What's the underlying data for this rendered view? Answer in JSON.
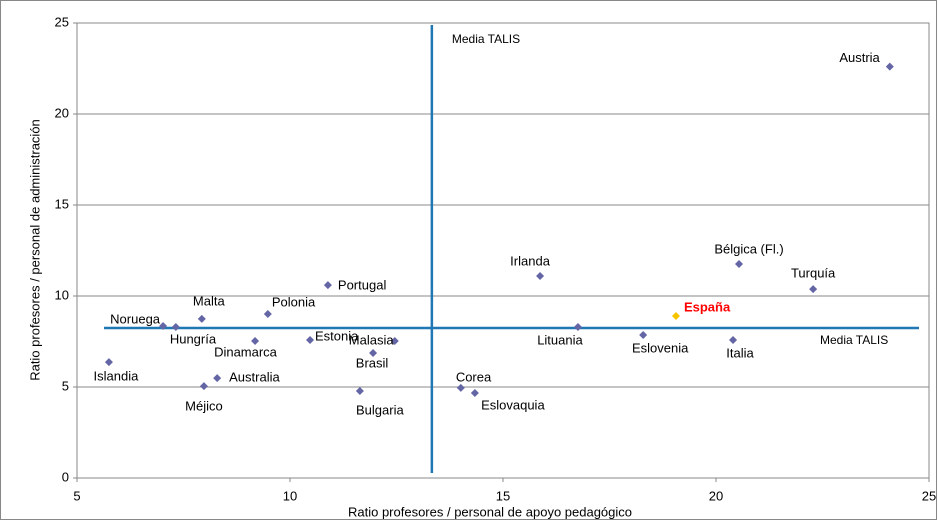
{
  "chart_data": {
    "type": "scatter",
    "x_label": "Ratio profesores / personal de apoyo pedagógico",
    "y_label": "Ratio profesores / personal de administración",
    "labels": [
      "Austria",
      "Bélgica (Fl.)",
      "Turquía",
      "España",
      "Italia",
      "Eslovenia",
      "Lituania",
      "Irlanda",
      "Corea",
      "Eslovaquia",
      "Bulgaria",
      "Brasil",
      "Malasia",
      "Estonia",
      "Portugal",
      "Polonia",
      "Dinamarca",
      "Malta",
      "Hungría",
      "Noruega",
      "Islandia",
      "Australia",
      "Méjico"
    ],
    "x": [
      24.08,
      20.54,
      22.28,
      19.06,
      20.4,
      18.29,
      16.76,
      15.87,
      14.01,
      14.34,
      11.64,
      11.95,
      12.46,
      10.47,
      10.89,
      9.48,
      9.18,
      7.93,
      7.32,
      7.02,
      5.75,
      8.29,
      7.98
    ],
    "values": [
      22.6,
      11.76,
      10.38,
      8.9,
      7.58,
      7.86,
      8.3,
      11.1,
      4.95,
      4.67,
      4.78,
      6.87,
      7.53,
      7.58,
      10.6,
      9.01,
      7.53,
      8.74,
      8.3,
      8.35,
      6.37,
      5.49,
      5.05
    ],
    "color": "#6465a5",
    "highlight": {
      "index": 3,
      "color": "#f7c500",
      "label_color": "#ff0000"
    },
    "vline": {
      "value": 13.33,
      "label": "Media TALIS"
    },
    "hline": {
      "value": 8.24,
      "label": "Media TALIS"
    },
    "line_color": "#1f77b4",
    "xlim": [
      5,
      25
    ],
    "xticks": [
      5,
      10,
      15,
      20,
      25
    ],
    "ylim": [
      0,
      25
    ],
    "yticks": [
      0,
      5,
      10,
      15,
      20,
      25
    ],
    "grid": true
  }
}
